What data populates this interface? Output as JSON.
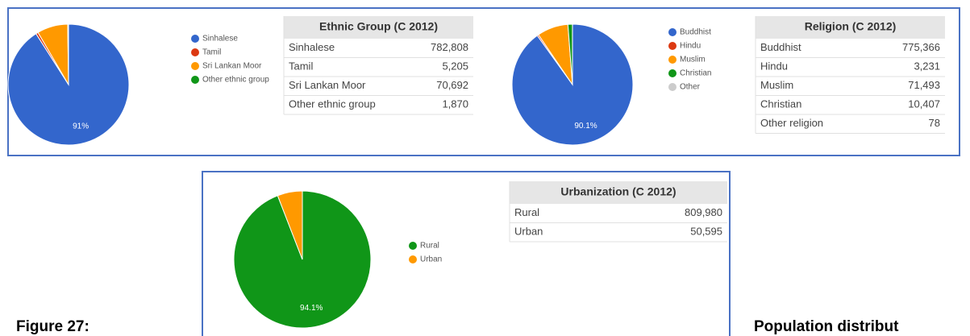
{
  "chart_data": [
    {
      "type": "pie",
      "categories": [
        "Sinhalese",
        "Tamil",
        "Sri Lankan Moor",
        "Other ethnic group"
      ],
      "values": [
        782808,
        5205,
        70692,
        1870
      ],
      "value_labels": [
        "782,808",
        "5,205",
        "70,692",
        "1,870"
      ],
      "colors": [
        "#3366cc",
        "#dc3912",
        "#ff9900",
        "#109618"
      ],
      "annotation": "91%",
      "table_title": "Ethnic Group (C 2012)",
      "table_rows": [
        "Sinhalese",
        "Tamil",
        "Sri Lankan Moor",
        "Other ethnic group"
      ]
    },
    {
      "type": "pie",
      "categories": [
        "Buddhist",
        "Hindu",
        "Muslim",
        "Christian",
        "Other"
      ],
      "values": [
        775366,
        3231,
        71493,
        10407,
        78
      ],
      "value_labels": [
        "775,366",
        "3,231",
        "71,493",
        "10,407",
        "78"
      ],
      "colors": [
        "#3366cc",
        "#dc3912",
        "#ff9900",
        "#109618",
        "#cccccc"
      ],
      "annotation": "90.1%",
      "table_title": "Religion (C 2012)",
      "table_rows": [
        "Buddhist",
        "Hindu",
        "Muslim",
        "Christian",
        "Other religion"
      ]
    },
    {
      "type": "pie",
      "categories": [
        "Rural",
        "Urban"
      ],
      "values": [
        809980,
        50595
      ],
      "value_labels": [
        "809,980",
        "50,595"
      ],
      "colors": [
        "#109618",
        "#ff9900"
      ],
      "annotation": "94.1%",
      "table_title": "Urbanization (C 2012)",
      "table_rows": [
        "Rural",
        "Urban"
      ]
    }
  ],
  "figure_label": "Figure 27:",
  "caption": "Population distribut"
}
